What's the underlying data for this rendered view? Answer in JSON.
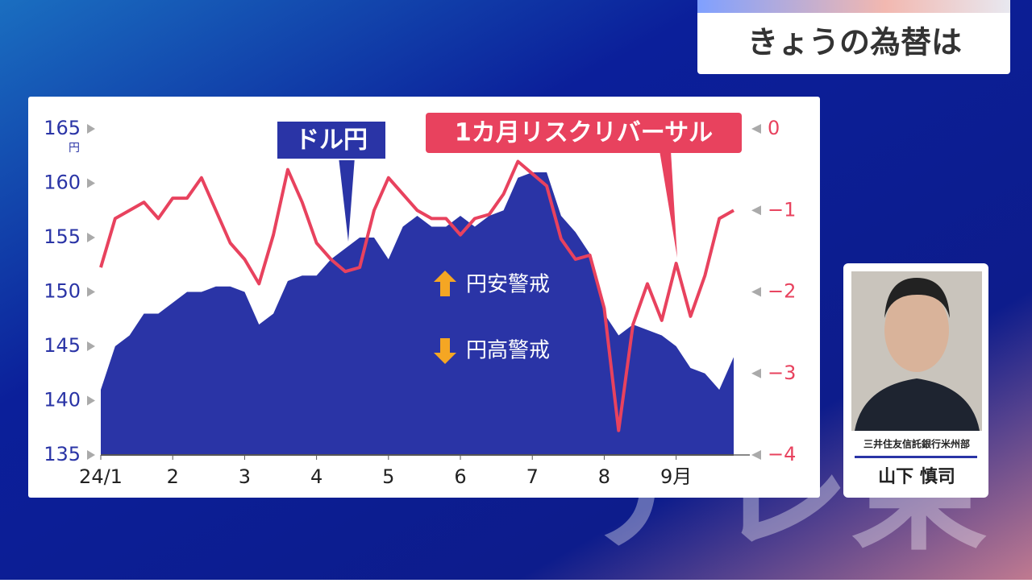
{
  "header": {
    "title": "きょうの為替は"
  },
  "chart_data": {
    "type": "area-line",
    "y_unit": "円",
    "x": [
      1.0,
      1.2,
      1.4,
      1.6,
      1.8,
      2.0,
      2.2,
      2.4,
      2.6,
      2.8,
      3.0,
      3.2,
      3.4,
      3.6,
      3.8,
      4.0,
      4.2,
      4.4,
      4.6,
      4.8,
      5.0,
      5.2,
      5.4,
      5.6,
      5.8,
      6.0,
      6.2,
      6.4,
      6.6,
      6.8,
      7.0,
      7.2,
      7.4,
      7.6,
      7.8,
      8.0,
      8.2,
      8.4,
      8.6,
      8.8,
      9.0,
      9.2,
      9.4,
      9.6,
      9.8
    ],
    "xlim": [
      1.0,
      9.8
    ],
    "xticks": [
      {
        "value": 1,
        "label": "24/1"
      },
      2,
      3,
      4,
      5,
      6,
      7,
      8,
      {
        "value": 9,
        "label": "9月"
      }
    ],
    "ylim": [
      135,
      165
    ],
    "yticks": [
      135,
      140,
      145,
      150,
      155,
      160,
      165
    ],
    "y2lim": [
      -4,
      0
    ],
    "y2ticks": [
      {
        "value": -4,
        "label": "−4"
      },
      {
        "value": -3,
        "label": "−3"
      },
      {
        "value": -2,
        "label": "−2"
      },
      {
        "value": -1,
        "label": "−1"
      },
      0
    ],
    "series": [
      {
        "name": "ドル円",
        "color": "#2a34a6",
        "values": [
          141,
          145,
          146,
          148,
          148,
          149,
          150,
          150,
          150.5,
          150.5,
          150,
          147,
          148,
          151,
          151.5,
          151.5,
          153,
          154,
          155,
          155,
          153,
          156,
          157,
          156,
          156,
          157,
          156,
          157,
          157.5,
          160.5,
          161,
          161,
          157,
          155.5,
          153.5,
          148,
          146,
          147,
          146.5,
          146,
          145,
          143,
          142.5,
          141,
          144
        ]
      },
      {
        "name": "1カ月リスクリバーサル",
        "color": "#e8425e",
        "axis": "y2",
        "values": [
          -1.7,
          -1.1,
          -1.0,
          -0.9,
          -1.1,
          -0.85,
          -0.85,
          -0.6,
          -1.0,
          -1.4,
          -1.6,
          -1.9,
          -1.3,
          -0.5,
          -0.9,
          -1.4,
          -1.6,
          -1.75,
          -1.7,
          -1.0,
          -0.6,
          -0.8,
          -1.0,
          -1.1,
          -1.1,
          -1.3,
          -1.1,
          -1.05,
          -0.8,
          -0.4,
          -0.55,
          -0.7,
          -1.35,
          -1.6,
          -1.55,
          -2.2,
          -3.7,
          -2.4,
          -1.9,
          -2.35,
          -1.65,
          -2.3,
          -1.8,
          -1.1,
          -1.0
        ]
      }
    ],
    "annotations": [
      "円安警戒",
      "円高警戒"
    ]
  },
  "guest": {
    "affiliation": "三井住友信託銀行米州部",
    "name": "山下 慎司"
  },
  "watermark": "テレ東"
}
